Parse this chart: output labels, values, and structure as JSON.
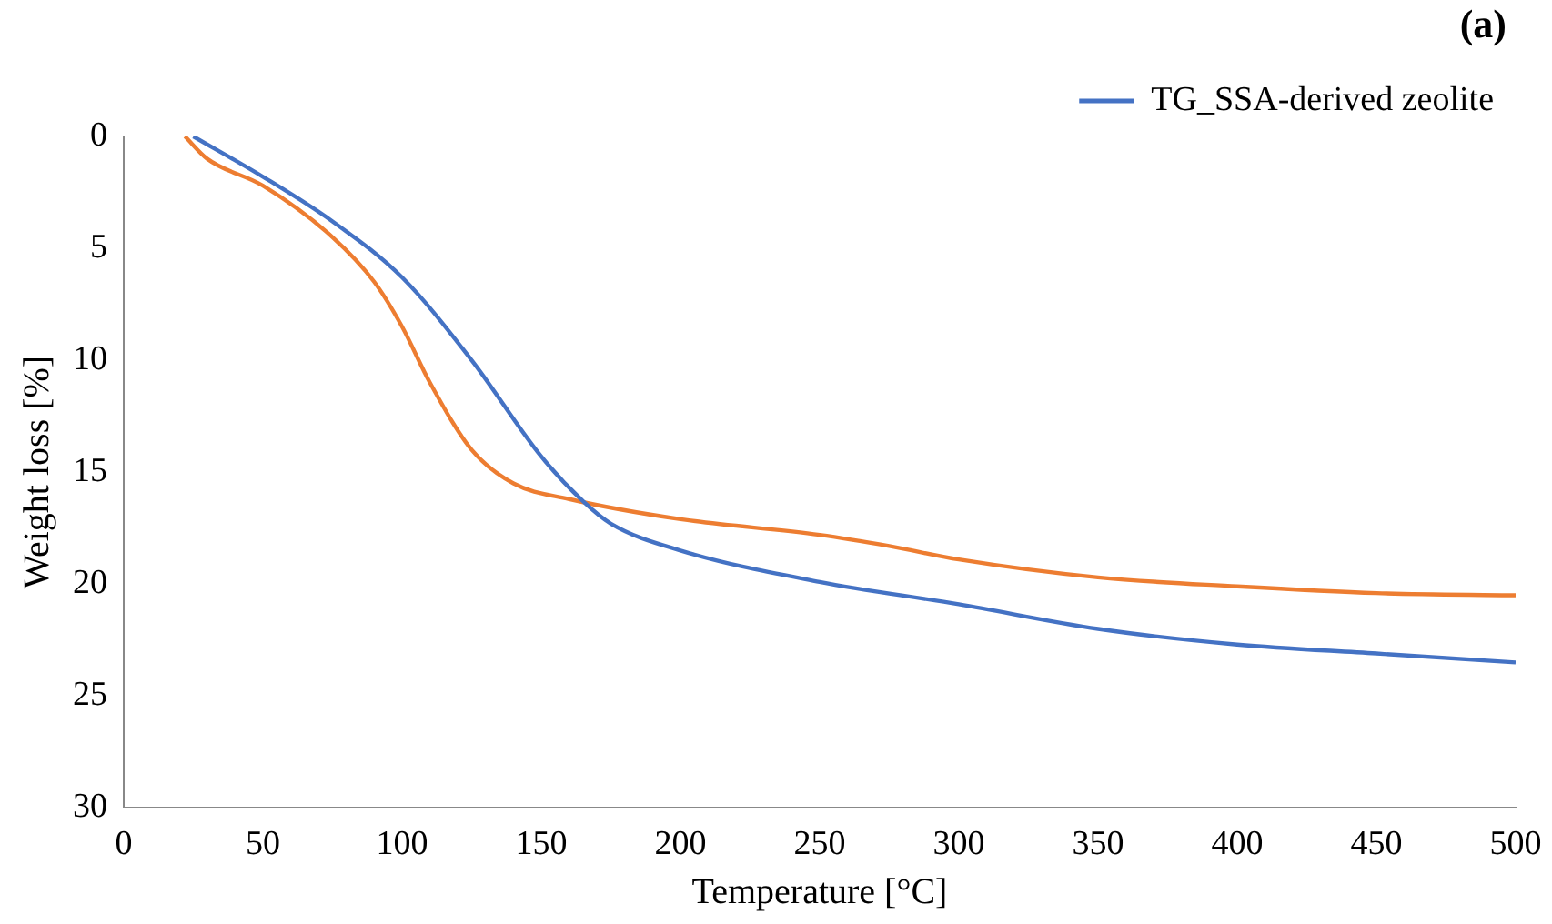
{
  "chart_data": {
    "type": "line",
    "xlabel": "Temperature [°C]",
    "ylabel": "Weight loss [%]",
    "annotations": [
      "(a)"
    ],
    "xlim": [
      0,
      500
    ],
    "xticks": [
      0,
      50,
      100,
      150,
      200,
      250,
      300,
      350,
      400,
      450,
      500
    ],
    "ylim": [
      30,
      0
    ],
    "yticks": [
      0,
      5,
      10,
      15,
      20,
      25,
      30
    ],
    "grid": false,
    "legend": "top right",
    "marker": "none",
    "line_style": "solid",
    "series": [
      {
        "name": "TG_SSA-derived zeolite",
        "color": "#4472c4",
        "x": [
          25,
          50,
          75,
          100,
          125,
          150,
          165,
          175,
          200,
          250,
          300,
          350,
          400,
          450,
          500
        ],
        "values": [
          0,
          1.8,
          3.8,
          6.3,
          10,
          14.3,
          16.3,
          17.3,
          18.5,
          19.9,
          20.9,
          22,
          22.7,
          23.1,
          23.5
        ]
      },
      {
        "color": "#ed7d31",
        "x": [
          22,
          30,
          50,
          75,
          90,
          100,
          110,
          125,
          140,
          160,
          200,
          250,
          275,
          300,
          350,
          400,
          450,
          500
        ],
        "values": [
          0,
          1,
          2.2,
          4.5,
          6.5,
          8.5,
          11,
          14,
          15.5,
          16.2,
          17.1,
          17.8,
          18.3,
          18.9,
          19.7,
          20.1,
          20.4,
          20.5
        ]
      }
    ]
  }
}
